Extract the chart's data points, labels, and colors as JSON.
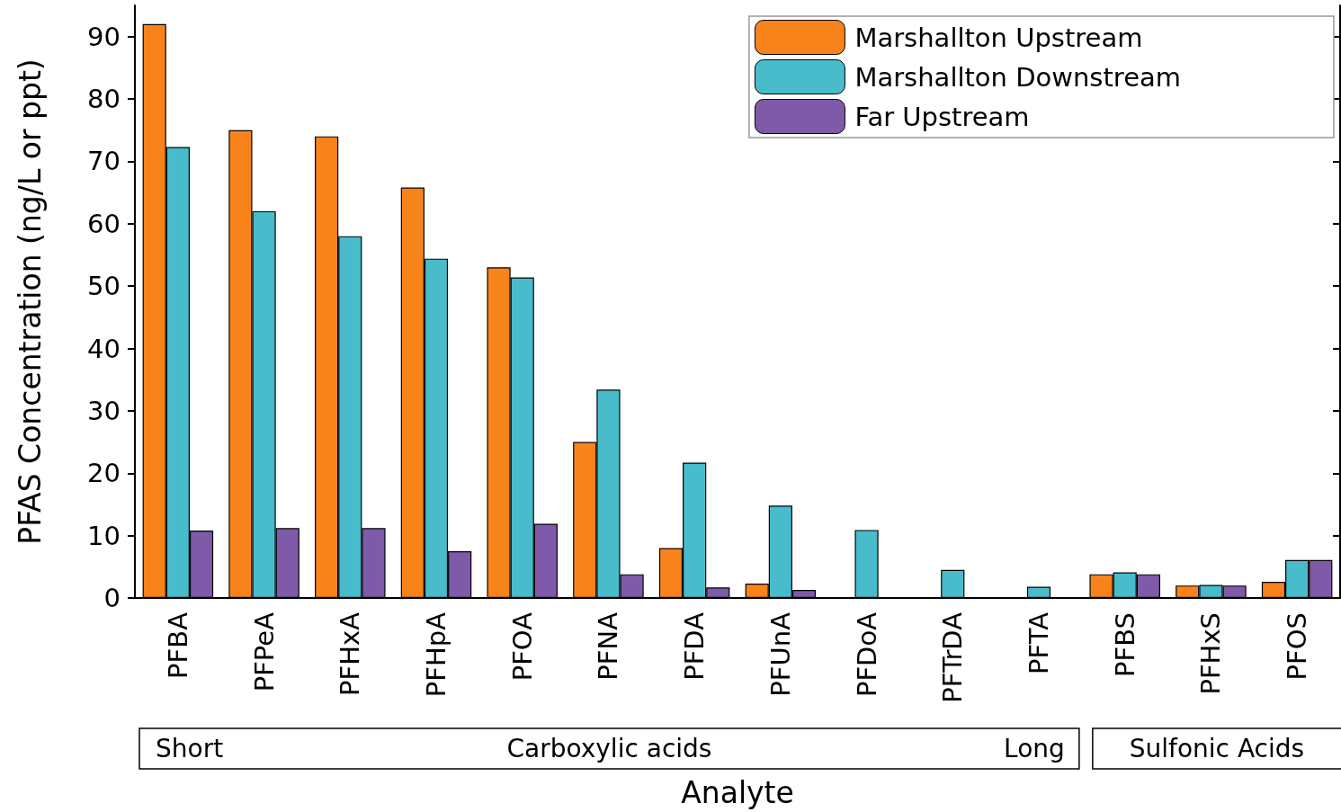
{
  "chart_data": {
    "type": "bar",
    "categories": [
      "PFBA",
      "PFPeA",
      "PFHxA",
      "PFHpA",
      "PFOA",
      "PFNA",
      "PFDA",
      "PFUnA",
      "PFDoA",
      "PFTrDA",
      "PFTA",
      "PFBS",
      "PFHxS",
      "PFOS"
    ],
    "series": [
      {
        "name": "Marshallton Upstream",
        "color": "#f8831b",
        "values": [
          92,
          75,
          74,
          65.8,
          53,
          25,
          8,
          2.3,
          null,
          null,
          null,
          3.8,
          2.0,
          2.6
        ]
      },
      {
        "name": "Marshallton Downstream",
        "color": "#48bccb",
        "values": [
          72.3,
          62,
          58,
          54.4,
          51.4,
          33.4,
          21.7,
          14.8,
          10.9,
          4.5,
          1.8,
          4.1,
          2.1,
          6.1
        ]
      },
      {
        "name": "Far Upstream",
        "color": "#7f5aa8",
        "values": [
          10.8,
          11.2,
          11.2,
          7.5,
          11.9,
          3.8,
          1.7,
          1.3,
          null,
          null,
          null,
          3.8,
          2.0,
          6.1
        ]
      }
    ],
    "xlabel": "Analyte",
    "ylabel": "PFAS Concentration (ng/L or ppt)",
    "ylim": [
      0,
      95
    ],
    "yticks": [
      0,
      10,
      20,
      30,
      40,
      50,
      60,
      70,
      80,
      90
    ],
    "annotations": [
      "Short",
      "Carboxylic acids",
      "Long",
      "Sulfonic Acids"
    ],
    "grid": false,
    "legend": "top right"
  }
}
